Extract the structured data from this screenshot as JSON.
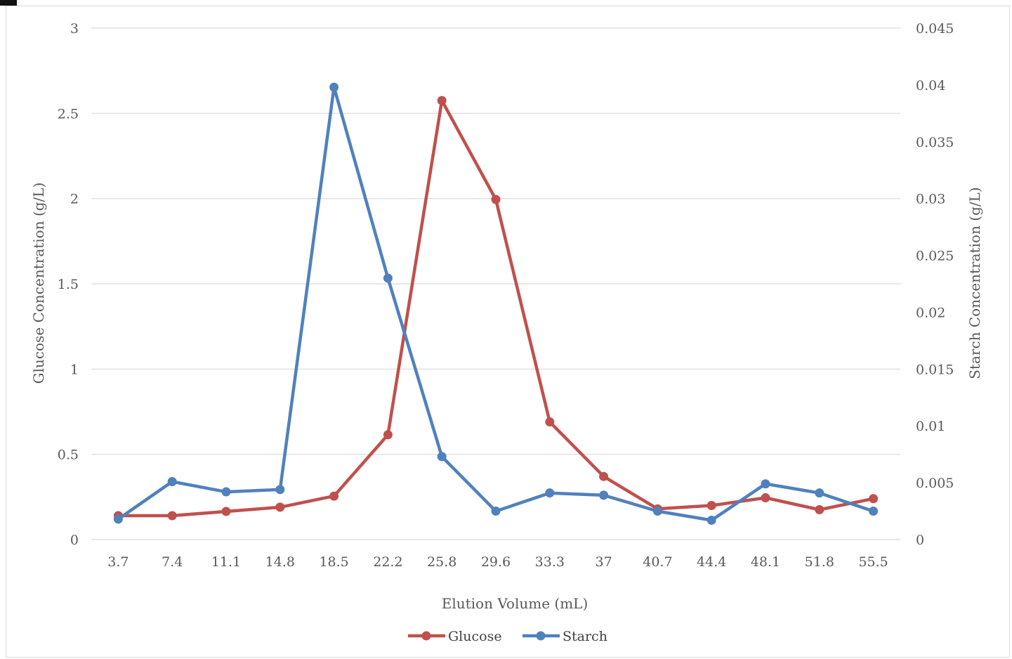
{
  "chart_data": {
    "type": "line",
    "title": "",
    "xlabel": "Elution Volume (mL)",
    "ylabel_left": "Glucose Concentration (g/L)",
    "ylabel_right": "Starch Concentration (g/L)",
    "categories": [
      "3.7",
      "7.4",
      "11.1",
      "14.8",
      "18.5",
      "22.2",
      "25.8",
      "29.6",
      "33.3",
      "37",
      "40.7",
      "44.4",
      "48.1",
      "51.8",
      "55.5"
    ],
    "y_left": {
      "min": 0,
      "max": 3,
      "step": 0.5,
      "ticks": [
        "0",
        "0.5",
        "1",
        "1.5",
        "2",
        "2.5",
        "3"
      ]
    },
    "y_right": {
      "min": 0,
      "max": 0.045,
      "step": 0.005,
      "ticks": [
        "0",
        "0.005",
        "0.01",
        "0.015",
        "0.02",
        "0.025",
        "0.03",
        "0.035",
        "0.04",
        "0.045"
      ]
    },
    "grid": "horizontal",
    "legend_position": "bottom",
    "series": [
      {
        "name": "Glucose",
        "axis": "left",
        "color": "#c0504d",
        "values": [
          0.14,
          0.14,
          0.165,
          0.19,
          0.255,
          0.615,
          2.575,
          1.995,
          0.69,
          0.37,
          0.18,
          0.2,
          0.245,
          0.175,
          0.24
        ]
      },
      {
        "name": "Starch",
        "axis": "right",
        "color": "#4f81bd",
        "values": [
          0.0018,
          0.0051,
          0.0042,
          0.0044,
          0.0398,
          0.023,
          0.0073,
          0.0025,
          0.0041,
          0.0039,
          0.0025,
          0.0017,
          0.0049,
          0.0041,
          0.0025
        ]
      }
    ]
  }
}
